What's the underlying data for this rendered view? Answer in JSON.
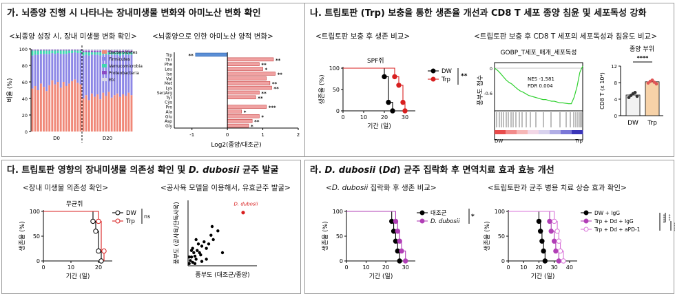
{
  "panels": {
    "ga": {
      "title": "가. 뇌종양 진행 시 나타나는 장내미생물 변화와 아미노산 변화 확인",
      "sub_left": "<뇌종양 성장 시, 장내 미생물 변화 확인>",
      "sub_right": "<뇌종양으로 인한 아미노산 양적 변화>"
    },
    "na": {
      "title": "나. 트립토판 (Trp) 보충을 통한 생존율 개선과 CD8 T 세포 종양 침윤 및 세포독성 강화",
      "sub_left": "<트립토판 보충 후 생존 비교>",
      "sub_right": "<트립토판 보충 후 CD8 T 세포의 세포독성과 침윤도 비교>"
    },
    "da": {
      "title_pre": "다. 트립토판 영향의 장내미생물 의존성 확인 및 ",
      "title_it": "D. dubosii",
      "title_post": " 균주 발굴",
      "sub_left": "<장내 미생물 의존성 확인>",
      "sub_right": "<공사육 모델을 이용해서, 유효균주 발굴>"
    },
    "ra": {
      "title_pre": "라. ",
      "title_it": "D. dubosii",
      "title_mid": " (",
      "title_it2": "Dd",
      "title_post": ") 균주 집락화 후 면역치료 효과 효능 개선",
      "sub_left_pre": "<",
      "sub_left_it": "D. dubosii",
      "sub_left_post": " 집락화 후 생존 비교>",
      "sub_right": "<트립토판과 균주 병용 치료 상승 효과 확인>"
    }
  },
  "chart_data": [
    {
      "id": "microbiome_bar",
      "type": "bar",
      "ylabel": "비율 (%)",
      "ylim": [
        0,
        100
      ],
      "yticks": [
        "0",
        "20",
        "40",
        "60",
        "80",
        "100"
      ],
      "groups": [
        "D0",
        "D20"
      ],
      "legend": [
        "Bacteroidetes",
        "Firmicutes",
        "Verrucomicrobia",
        "Proteobacteria",
        "Etc"
      ],
      "colors": {
        "Bacteroidetes": "#f08878",
        "Firmicutes": "#8d87e6",
        "Verrucomicrobia": "#3fd6b0",
        "Proteobacteria": "#8a4cc4",
        "Etc": "#d8d8e6"
      },
      "bars": [
        [
          52,
          40,
          6,
          1,
          1
        ],
        [
          55,
          38,
          5,
          1,
          1
        ],
        [
          50,
          43,
          5,
          1,
          1
        ],
        [
          58,
          36,
          4,
          1,
          1
        ],
        [
          54,
          40,
          4,
          1,
          1
        ],
        [
          49,
          45,
          4,
          1,
          1
        ],
        [
          56,
          38,
          4,
          1,
          1
        ],
        [
          62,
          33,
          3,
          1,
          1
        ],
        [
          57,
          37,
          4,
          1,
          1
        ],
        [
          60,
          35,
          3,
          1,
          1
        ],
        [
          53,
          41,
          4,
          1,
          1
        ],
        [
          60,
          34,
          4,
          1,
          1
        ],
        [
          55,
          39,
          4,
          1,
          1
        ],
        [
          58,
          37,
          3,
          1,
          1
        ],
        [
          61,
          34,
          3,
          1,
          1
        ],
        [
          63,
          33,
          2,
          1,
          1
        ],
        [
          59,
          36,
          3,
          1,
          1
        ],
        [
          57,
          38,
          3,
          1,
          1
        ],
        [
          40,
          52,
          4,
          2,
          2
        ],
        [
          44,
          49,
          3,
          2,
          2
        ],
        [
          38,
          54,
          4,
          2,
          2
        ],
        [
          46,
          47,
          3,
          2,
          2
        ],
        [
          42,
          51,
          3,
          2,
          2
        ],
        [
          45,
          48,
          3,
          2,
          2
        ],
        [
          39,
          53,
          4,
          2,
          2
        ],
        [
          47,
          46,
          3,
          2,
          2
        ],
        [
          43,
          50,
          3,
          2,
          2
        ],
        [
          48,
          45,
          3,
          2,
          2
        ],
        [
          41,
          52,
          3,
          2,
          2
        ],
        [
          44,
          49,
          3,
          2,
          2
        ],
        [
          46,
          47,
          3,
          2,
          2
        ],
        [
          42,
          50,
          4,
          2,
          2
        ],
        [
          45,
          48,
          3,
          2,
          2
        ],
        [
          43,
          50,
          3,
          2,
          2
        ],
        [
          47,
          46,
          3,
          2,
          2
        ],
        [
          44,
          49,
          3,
          2,
          2
        ]
      ]
    },
    {
      "id": "amino_acid_bar",
      "type": "bar",
      "xlabel": "Log2(종양/대조군)",
      "xlim": [
        -1.5,
        2
      ],
      "xticks": [
        "-1",
        "0",
        "1",
        "2"
      ],
      "categories": [
        "Trp",
        "Thr",
        "Phe",
        "Leu",
        "Iso",
        "Val",
        "Met",
        "Lys",
        "Ser/Arg",
        "Tyr",
        "Cys",
        "Pro",
        "Ala",
        "Glu",
        "Asp",
        "Gly"
      ],
      "values": [
        -0.9,
        1.3,
        0.9,
        1.0,
        1.35,
        1.1,
        1.2,
        1.25,
        0.9,
        0.8,
        0.0,
        1.1,
        0.4,
        0.9,
        0.7,
        0.6
      ],
      "sig": [
        "**",
        "**",
        "**",
        "*",
        "**",
        "",
        "**",
        "**",
        "**",
        "**",
        "",
        "***",
        "*",
        "*",
        "**",
        "*"
      ]
    },
    {
      "id": "spf_survival",
      "type": "line",
      "title": "SPF쥐",
      "ylabel": "생존율 (%)",
      "xlabel": "기간 (일)",
      "xlim": [
        0,
        35
      ],
      "ylim": [
        0,
        100
      ],
      "xticks": [
        "0",
        "10",
        "20",
        "30"
      ],
      "yticks": [
        "0",
        "50",
        "100"
      ],
      "legend": [
        "DW",
        "Trp"
      ],
      "sig": "**",
      "series": [
        {
          "name": "DW",
          "x": [
            0,
            20,
            20,
            22,
            22,
            24,
            24
          ],
          "y": [
            100,
            100,
            80,
            80,
            20,
            20,
            0
          ],
          "marks": [
            [
              20,
              80
            ],
            [
              22,
              20
            ],
            [
              24,
              0
            ]
          ]
        },
        {
          "name": "Trp",
          "x": [
            0,
            25,
            25,
            27,
            27,
            29,
            29,
            30,
            30
          ],
          "y": [
            100,
            100,
            80,
            80,
            60,
            60,
            20,
            20,
            0
          ],
          "marks": [
            [
              25,
              80
            ],
            [
              27,
              60
            ],
            [
              29,
              20
            ],
            [
              30,
              0
            ]
          ]
        }
      ]
    },
    {
      "id": "gsea",
      "type": "line",
      "title": "GOBP_T세포_매개_세포독성",
      "ylabel": "풍부도 점수",
      "yticks": [
        "0",
        "-0.6"
      ],
      "left_label": "DW",
      "right_label": "Trp",
      "nes": "NES -1.581",
      "fdr": "FDR 0.004",
      "es": [
        0,
        -0.05,
        -0.12,
        -0.2,
        -0.28,
        -0.34,
        -0.38,
        -0.44,
        -0.5,
        -0.55,
        -0.58,
        -0.62,
        -0.66,
        -0.68,
        -0.7,
        -0.72,
        -0.74,
        -0.76,
        -0.76,
        -0.78,
        -0.8,
        -0.8,
        -0.82,
        -0.84,
        -0.84,
        -0.85,
        -0.86,
        -0.86,
        -0.7,
        -0.45,
        -0.1,
        0.05
      ]
    },
    {
      "id": "cd8_bar",
      "type": "bar",
      "title": "종양 부위",
      "ylabel": "CD8 T (x 10⁴)",
      "categories": [
        "DW",
        "Trp"
      ],
      "values": [
        5.0,
        8.2
      ],
      "ylim": [
        0,
        12
      ],
      "yticks": [
        "0",
        "4",
        "8",
        "12"
      ],
      "sig": "****",
      "colors": [
        "#f2f2f2",
        "#f7d2a8"
      ],
      "points": [
        [
          4.4,
          4.9,
          5.3,
          5.6,
          4.7
        ],
        [
          7.9,
          8.3,
          8.6,
          8.1,
          7.7
        ]
      ]
    },
    {
      "id": "gf_survival",
      "type": "line",
      "title": "무균쥐",
      "ylabel": "생존율 (%)",
      "xlabel": "기간 (일)",
      "xlim": [
        0,
        25
      ],
      "ylim": [
        0,
        100
      ],
      "xticks": [
        "0",
        "10",
        "20"
      ],
      "yticks": [
        "0",
        "50",
        "100"
      ],
      "legend": [
        "DW",
        "Trp"
      ],
      "sig": "ns",
      "series": [
        {
          "name": "DW",
          "x": [
            0,
            18,
            18,
            19,
            19,
            20,
            20,
            21,
            21
          ],
          "y": [
            100,
            100,
            80,
            80,
            60,
            60,
            20,
            20,
            0
          ],
          "marks": [
            [
              18,
              80
            ],
            [
              19,
              60
            ],
            [
              20,
              20
            ],
            [
              21,
              0
            ]
          ]
        },
        {
          "name": "Trp",
          "x": [
            0,
            20,
            20,
            21,
            21,
            22,
            22
          ],
          "y": [
            100,
            100,
            80,
            80,
            20,
            20,
            0
          ],
          "marks": [
            [
              20,
              80
            ],
            [
              22,
              20
            ]
          ]
        }
      ]
    },
    {
      "id": "coculture_scatter",
      "type": "scatter",
      "xlabel": "풍부도 (대조군/종양)",
      "ylabel": "풍부도 (공사육/단독사육)",
      "xlim": [
        0,
        3
      ],
      "ylim": [
        0,
        1.5
      ],
      "highlight": {
        "label": "D. dubosii",
        "x": 2.4,
        "y": 1.22
      },
      "points": [
        [
          0.05,
          0.05
        ],
        [
          0.1,
          0.12
        ],
        [
          0.15,
          0.2
        ],
        [
          0.2,
          0.08
        ],
        [
          0.25,
          0.3
        ],
        [
          0.3,
          0.22
        ],
        [
          0.35,
          0.15
        ],
        [
          0.4,
          0.35
        ],
        [
          0.45,
          0.5
        ],
        [
          0.5,
          0.3
        ],
        [
          0.55,
          0.25
        ],
        [
          0.6,
          0.45
        ],
        [
          0.7,
          0.55
        ],
        [
          0.8,
          0.4
        ],
        [
          0.9,
          0.5
        ],
        [
          1.0,
          0.7
        ],
        [
          1.05,
          0.9
        ],
        [
          1.1,
          0.6
        ],
        [
          1.3,
          0.8
        ],
        [
          0.2,
          0.4
        ],
        [
          0.35,
          0.6
        ],
        [
          0.15,
          0.35
        ],
        [
          0.6,
          0.1
        ],
        [
          0.8,
          0.15
        ],
        [
          1.5,
          0.3
        ],
        [
          0.05,
          0.2
        ],
        [
          0.3,
          0.05
        ]
      ]
    },
    {
      "id": "dd_survival",
      "type": "line",
      "ylabel": "생존율 (%)",
      "xlabel": "기간 (일)",
      "xlim": [
        0,
        35
      ],
      "ylim": [
        0,
        100
      ],
      "xticks": [
        "0",
        "10",
        "20",
        "30"
      ],
      "yticks": [
        "0",
        "50",
        "100"
      ],
      "legend": [
        "대조군",
        "D. dubosii"
      ],
      "sig": "*",
      "series": [
        {
          "name": "대조군",
          "x": [
            0,
            23,
            23,
            24,
            24,
            25,
            25,
            26,
            26,
            27,
            27
          ],
          "y": [
            100,
            100,
            80,
            80,
            60,
            60,
            40,
            40,
            20,
            20,
            0
          ],
          "marks": [
            [
              23,
              80
            ],
            [
              24,
              60
            ],
            [
              25,
              40
            ],
            [
              26,
              20
            ],
            [
              27,
              0
            ]
          ]
        },
        {
          "name": "D. dubosii",
          "x": [
            0,
            25,
            25,
            26,
            26,
            27,
            27,
            28,
            28,
            30,
            30
          ],
          "y": [
            100,
            100,
            80,
            80,
            60,
            60,
            40,
            40,
            20,
            20,
            0
          ],
          "marks": [
            [
              25,
              80
            ],
            [
              26,
              60
            ],
            [
              27,
              40
            ],
            [
              28,
              20
            ],
            [
              30,
              0
            ]
          ]
        }
      ]
    },
    {
      "id": "combo_survival",
      "type": "line",
      "ylabel": "생존율 (%)",
      "xlabel": "기간 (일)",
      "xlim": [
        0,
        45
      ],
      "ylim": [
        0,
        100
      ],
      "xticks": [
        "0",
        "10",
        "20",
        "30",
        "40"
      ],
      "yticks": [
        "0",
        "50",
        "100"
      ],
      "legend": [
        "DW + IgG",
        "Trp + Dd + IgG",
        "Trp + Dd + aPD-1"
      ],
      "sig": [
        "****",
        "***",
        "****"
      ],
      "series": [
        {
          "name": "DW + IgG",
          "x": [
            0,
            20,
            20,
            21,
            21,
            22,
            22,
            23,
            23,
            24,
            24
          ],
          "y": [
            100,
            100,
            80,
            80,
            60,
            60,
            40,
            40,
            20,
            20,
            0
          ],
          "marks": [
            [
              20,
              80
            ],
            [
              21,
              60
            ],
            [
              22,
              40
            ],
            [
              23,
              20
            ],
            [
              24,
              0
            ]
          ]
        },
        {
          "name": "Trp + Dd + IgG",
          "x": [
            0,
            27,
            27,
            28,
            28,
            30,
            30,
            31,
            31,
            33,
            33
          ],
          "y": [
            100,
            100,
            80,
            80,
            60,
            60,
            40,
            40,
            20,
            20,
            0
          ],
          "marks": [
            [
              27,
              80
            ],
            [
              28,
              60
            ],
            [
              30,
              40
            ],
            [
              31,
              20
            ],
            [
              33,
              0
            ]
          ]
        },
        {
          "name": "Trp + Dd + aPD-1",
          "x": [
            0,
            30,
            30,
            32,
            32,
            33,
            33,
            34,
            34,
            36,
            36
          ],
          "y": [
            100,
            100,
            80,
            80,
            60,
            60,
            40,
            40,
            20,
            20,
            0
          ],
          "marks": [
            [
              30,
              80
            ],
            [
              32,
              60
            ],
            [
              33,
              40
            ],
            [
              34,
              20
            ],
            [
              36,
              0
            ]
          ]
        }
      ]
    }
  ]
}
